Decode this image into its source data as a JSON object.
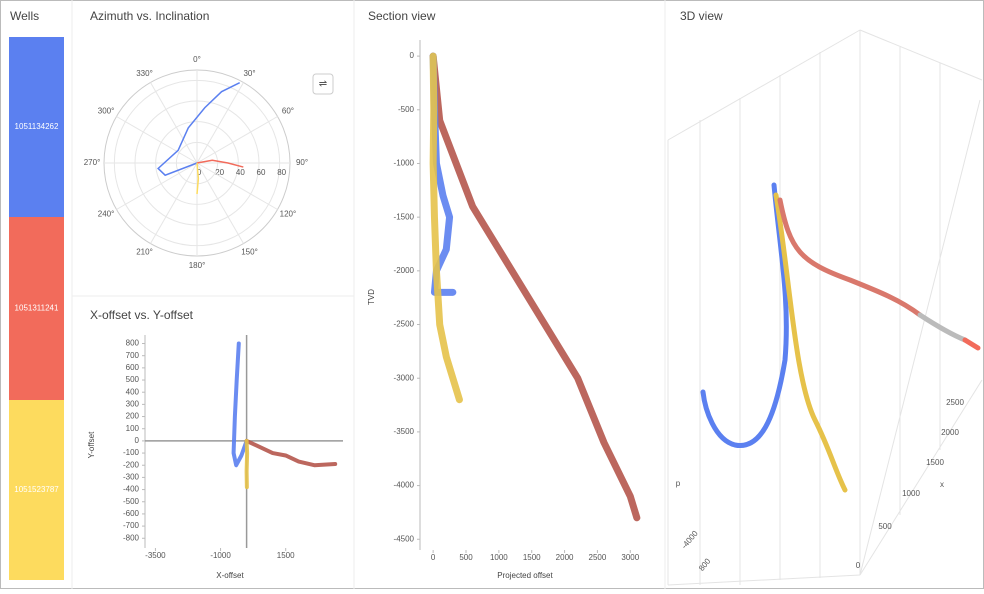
{
  "wells": {
    "title": "Wells",
    "items": [
      {
        "label": "1051134262",
        "color": "#5b80f0"
      },
      {
        "label": "1051311241",
        "color": "#f26b5b"
      },
      {
        "label": "1051523787",
        "color": "#fddb5e"
      }
    ]
  },
  "chart_data": [
    {
      "type": "polar",
      "title": "Azimuth vs. Inclination",
      "rlim": [
        0,
        90
      ],
      "rticks": [
        0,
        20,
        40,
        60,
        80
      ],
      "thetaticks": [
        {
          "value": 0,
          "label": "0°"
        },
        {
          "value": 30,
          "label": "30°"
        },
        {
          "value": 60,
          "label": "60°"
        },
        {
          "value": 90,
          "label": "90°"
        },
        {
          "value": 120,
          "label": "120°"
        },
        {
          "value": 150,
          "label": "150°"
        },
        {
          "value": 180,
          "label": "180°"
        },
        {
          "value": 210,
          "label": "210°"
        },
        {
          "value": 240,
          "label": "240°"
        },
        {
          "value": 270,
          "label": "270°"
        },
        {
          "value": 300,
          "label": "300°"
        },
        {
          "value": 330,
          "label": "330°"
        }
      ],
      "series": [
        {
          "color": "#5b80f0",
          "theta": [
            0,
            249,
            262,
            304,
            346,
            8,
            19,
            28
          ],
          "values": [
            0,
            33,
            38,
            22,
            35,
            54,
            73,
            88
          ]
        },
        {
          "color": "#f26b5b",
          "theta": [
            0,
            80,
            90,
            95
          ],
          "values": [
            0,
            15,
            30,
            45
          ]
        },
        {
          "color": "#fddb5e",
          "theta": [
            0,
            175,
            180
          ],
          "values": [
            0,
            15,
            30
          ]
        }
      ]
    },
    {
      "type": "line",
      "title": "X-offset vs. Y-offset",
      "xlabel": "X-offset",
      "ylabel": "Y-offset",
      "xlim": [
        -3900,
        3700
      ],
      "xticks": [
        -3500,
        -1000,
        1500
      ],
      "ylim": [
        -880,
        870
      ],
      "yticks": [
        800,
        700,
        600,
        500,
        400,
        300,
        200,
        100,
        0,
        -100,
        -200,
        -300,
        -400,
        -500,
        -600,
        -700,
        -800
      ],
      "zero_lines": true,
      "series": [
        {
          "color": "#5b80f0",
          "x": [
            0,
            -200,
            -400,
            -500,
            -450,
            -380,
            -300
          ],
          "values": [
            0,
            -120,
            -200,
            -100,
            200,
            500,
            800
          ]
        },
        {
          "color": "#b5564c",
          "x": [
            0,
            500,
            1000,
            1500,
            2000,
            2600,
            3400
          ],
          "values": [
            0,
            -50,
            -100,
            -120,
            -170,
            -200,
            -190
          ]
        },
        {
          "color": "#e6c24a",
          "x": [
            0,
            20,
            0,
            10
          ],
          "values": [
            0,
            -100,
            -250,
            -380
          ]
        }
      ]
    },
    {
      "type": "line",
      "title": "Section view",
      "xlabel": "Projected offset",
      "ylabel": "TVD",
      "xlim": [
        -200,
        3300
      ],
      "xticks": [
        0,
        500,
        1000,
        1500,
        2000,
        2500,
        3000
      ],
      "ylim": [
        -4600,
        150
      ],
      "yticks": [
        0,
        -500,
        -1000,
        -1500,
        -2000,
        -2500,
        -3000,
        -3500,
        -4000,
        -4500
      ],
      "zero_lines": false,
      "series": [
        {
          "color": "#b5564c",
          "x": [
            0,
            100,
            600,
            1500,
            2200,
            2600,
            3000,
            3100
          ],
          "values": [
            0,
            -600,
            -1400,
            -2300,
            -3000,
            -3600,
            -4100,
            -4300
          ]
        },
        {
          "color": "#5b80f0",
          "x": [
            0,
            20,
            50,
            150,
            250,
            200,
            50,
            20,
            100,
            300
          ],
          "values": [
            0,
            -500,
            -1000,
            -1300,
            -1500,
            -1800,
            -2000,
            -2200,
            -2200,
            -2200
          ]
        },
        {
          "color": "#e6c24a",
          "x": [
            0,
            10,
            0,
            20,
            50,
            100,
            200,
            350,
            400
          ],
          "values": [
            0,
            -500,
            -1000,
            -1500,
            -2000,
            -2500,
            -2800,
            -3100,
            -3200
          ]
        }
      ]
    }
  ],
  "view3d": {
    "title": "3D view",
    "labels": [
      "2500",
      "2000",
      "1500",
      "1000",
      "500",
      "0",
      "x",
      "-4000",
      "800",
      "p"
    ]
  }
}
